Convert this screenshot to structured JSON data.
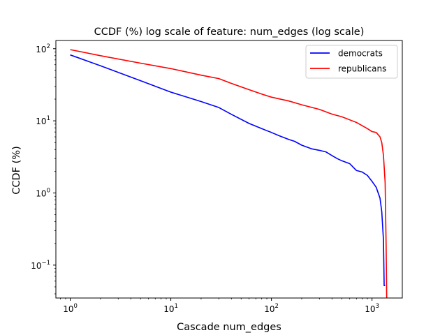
{
  "chart_data": {
    "type": "line",
    "title": "CCDF (%) log scale of feature: num_edges (log scale)",
    "xlabel": "Cascade num_edges",
    "ylabel": "CCDF (%)",
    "xscale": "log",
    "yscale": "log",
    "xlim": [
      0.72,
      2000
    ],
    "ylim": [
      0.035,
      130
    ],
    "grid": false,
    "legend_position": "top-right",
    "x_ticks": [
      {
        "value": 1,
        "mantissa": "10",
        "exp": "0"
      },
      {
        "value": 10,
        "mantissa": "10",
        "exp": "1"
      },
      {
        "value": 100,
        "mantissa": "10",
        "exp": "2"
      },
      {
        "value": 1000,
        "mantissa": "10",
        "exp": "3"
      }
    ],
    "y_ticks": [
      {
        "value": 0.1,
        "mantissa": "10",
        "exp": "−1"
      },
      {
        "value": 1,
        "mantissa": "10",
        "exp": "0"
      },
      {
        "value": 10,
        "mantissa": "10",
        "exp": "1"
      },
      {
        "value": 100,
        "mantissa": "10",
        "exp": "2"
      }
    ],
    "series": [
      {
        "name": "democrats",
        "color": "#0000ff",
        "x": [
          1,
          2,
          5,
          10,
          20,
          30,
          40,
          60,
          80,
          100,
          120,
          150,
          170,
          200,
          250,
          300,
          350,
          400,
          450,
          500,
          600,
          700,
          800,
          900,
          1000,
          1100,
          1200,
          1250,
          1300,
          1320,
          1350
        ],
        "y": [
          82,
          58,
          36,
          25,
          18.5,
          15.3,
          12.3,
          9.2,
          7.8,
          6.9,
          6.2,
          5.5,
          5.2,
          4.6,
          4.1,
          3.9,
          3.7,
          3.3,
          3.0,
          2.8,
          2.55,
          2.05,
          1.95,
          1.75,
          1.45,
          1.2,
          0.85,
          0.55,
          0.22,
          0.052,
          0.052
        ]
      },
      {
        "name": "republicans",
        "color": "#ff0000",
        "x": [
          1,
          2,
          5,
          10,
          20,
          30,
          40,
          60,
          80,
          100,
          150,
          200,
          300,
          400,
          500,
          700,
          900,
          1000,
          1100,
          1200,
          1250,
          1300,
          1350,
          1380,
          1400
        ],
        "y": [
          97,
          80,
          63,
          53,
          43,
          38.5,
          33,
          27,
          23.5,
          21.3,
          18.8,
          16.7,
          14.4,
          12.4,
          11.4,
          9.5,
          7.8,
          7.1,
          6.9,
          6.0,
          5.0,
          3.3,
          1.4,
          0.2,
          0.035
        ]
      }
    ]
  }
}
